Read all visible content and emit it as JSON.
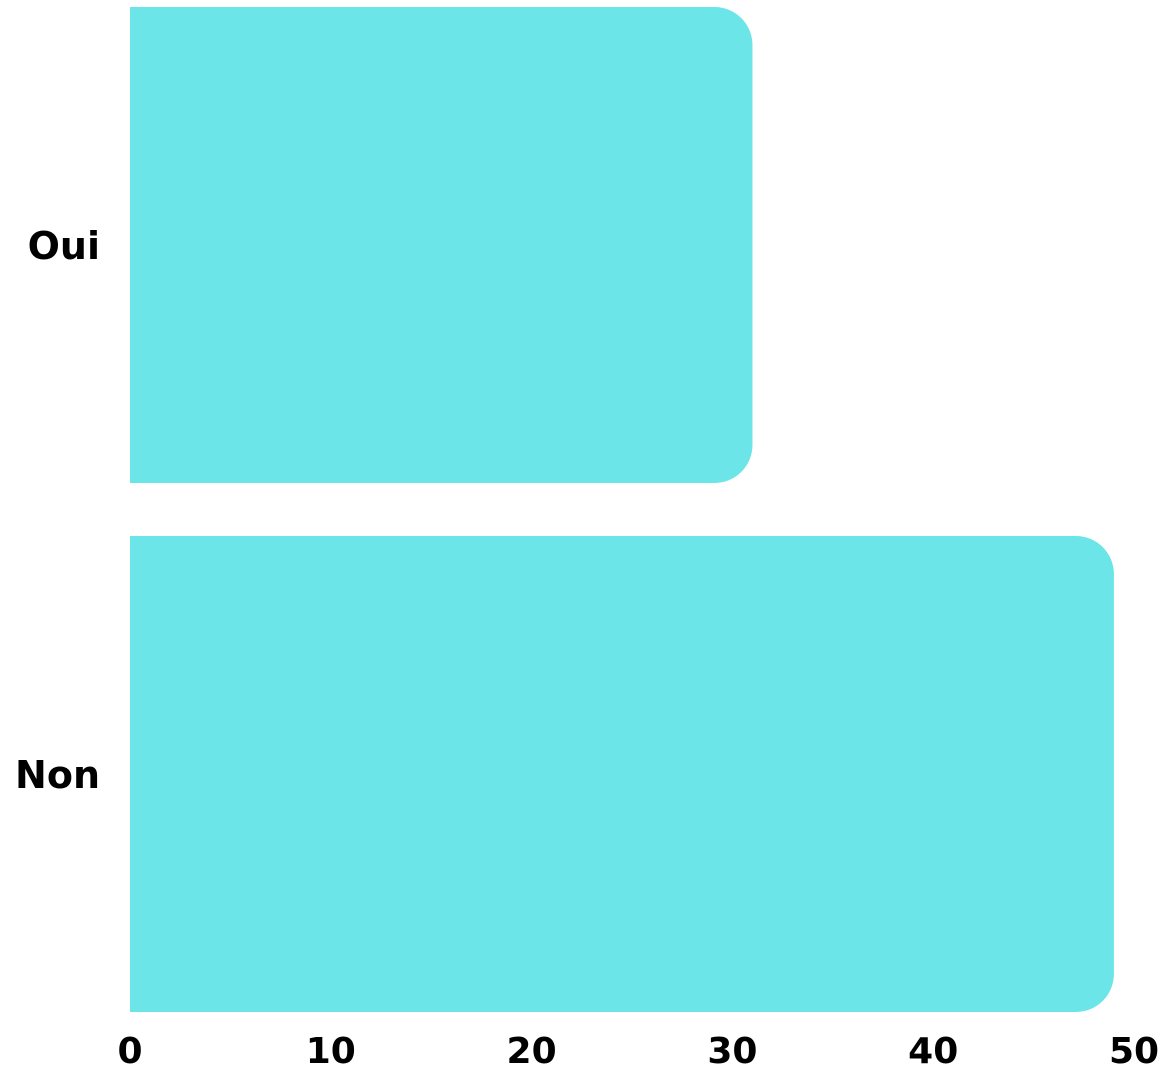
{
  "chart_data": {
    "type": "bar",
    "orientation": "horizontal",
    "categories": [
      "Oui",
      "Non"
    ],
    "values": [
      31,
      49
    ],
    "title": "",
    "xlabel": "",
    "ylabel": "",
    "xlim": [
      0,
      50
    ],
    "xticks": [
      "0",
      "10",
      "20",
      "30",
      "40",
      "50"
    ],
    "grid": false,
    "legend": "none",
    "bar_color": "#6ce5e8"
  }
}
